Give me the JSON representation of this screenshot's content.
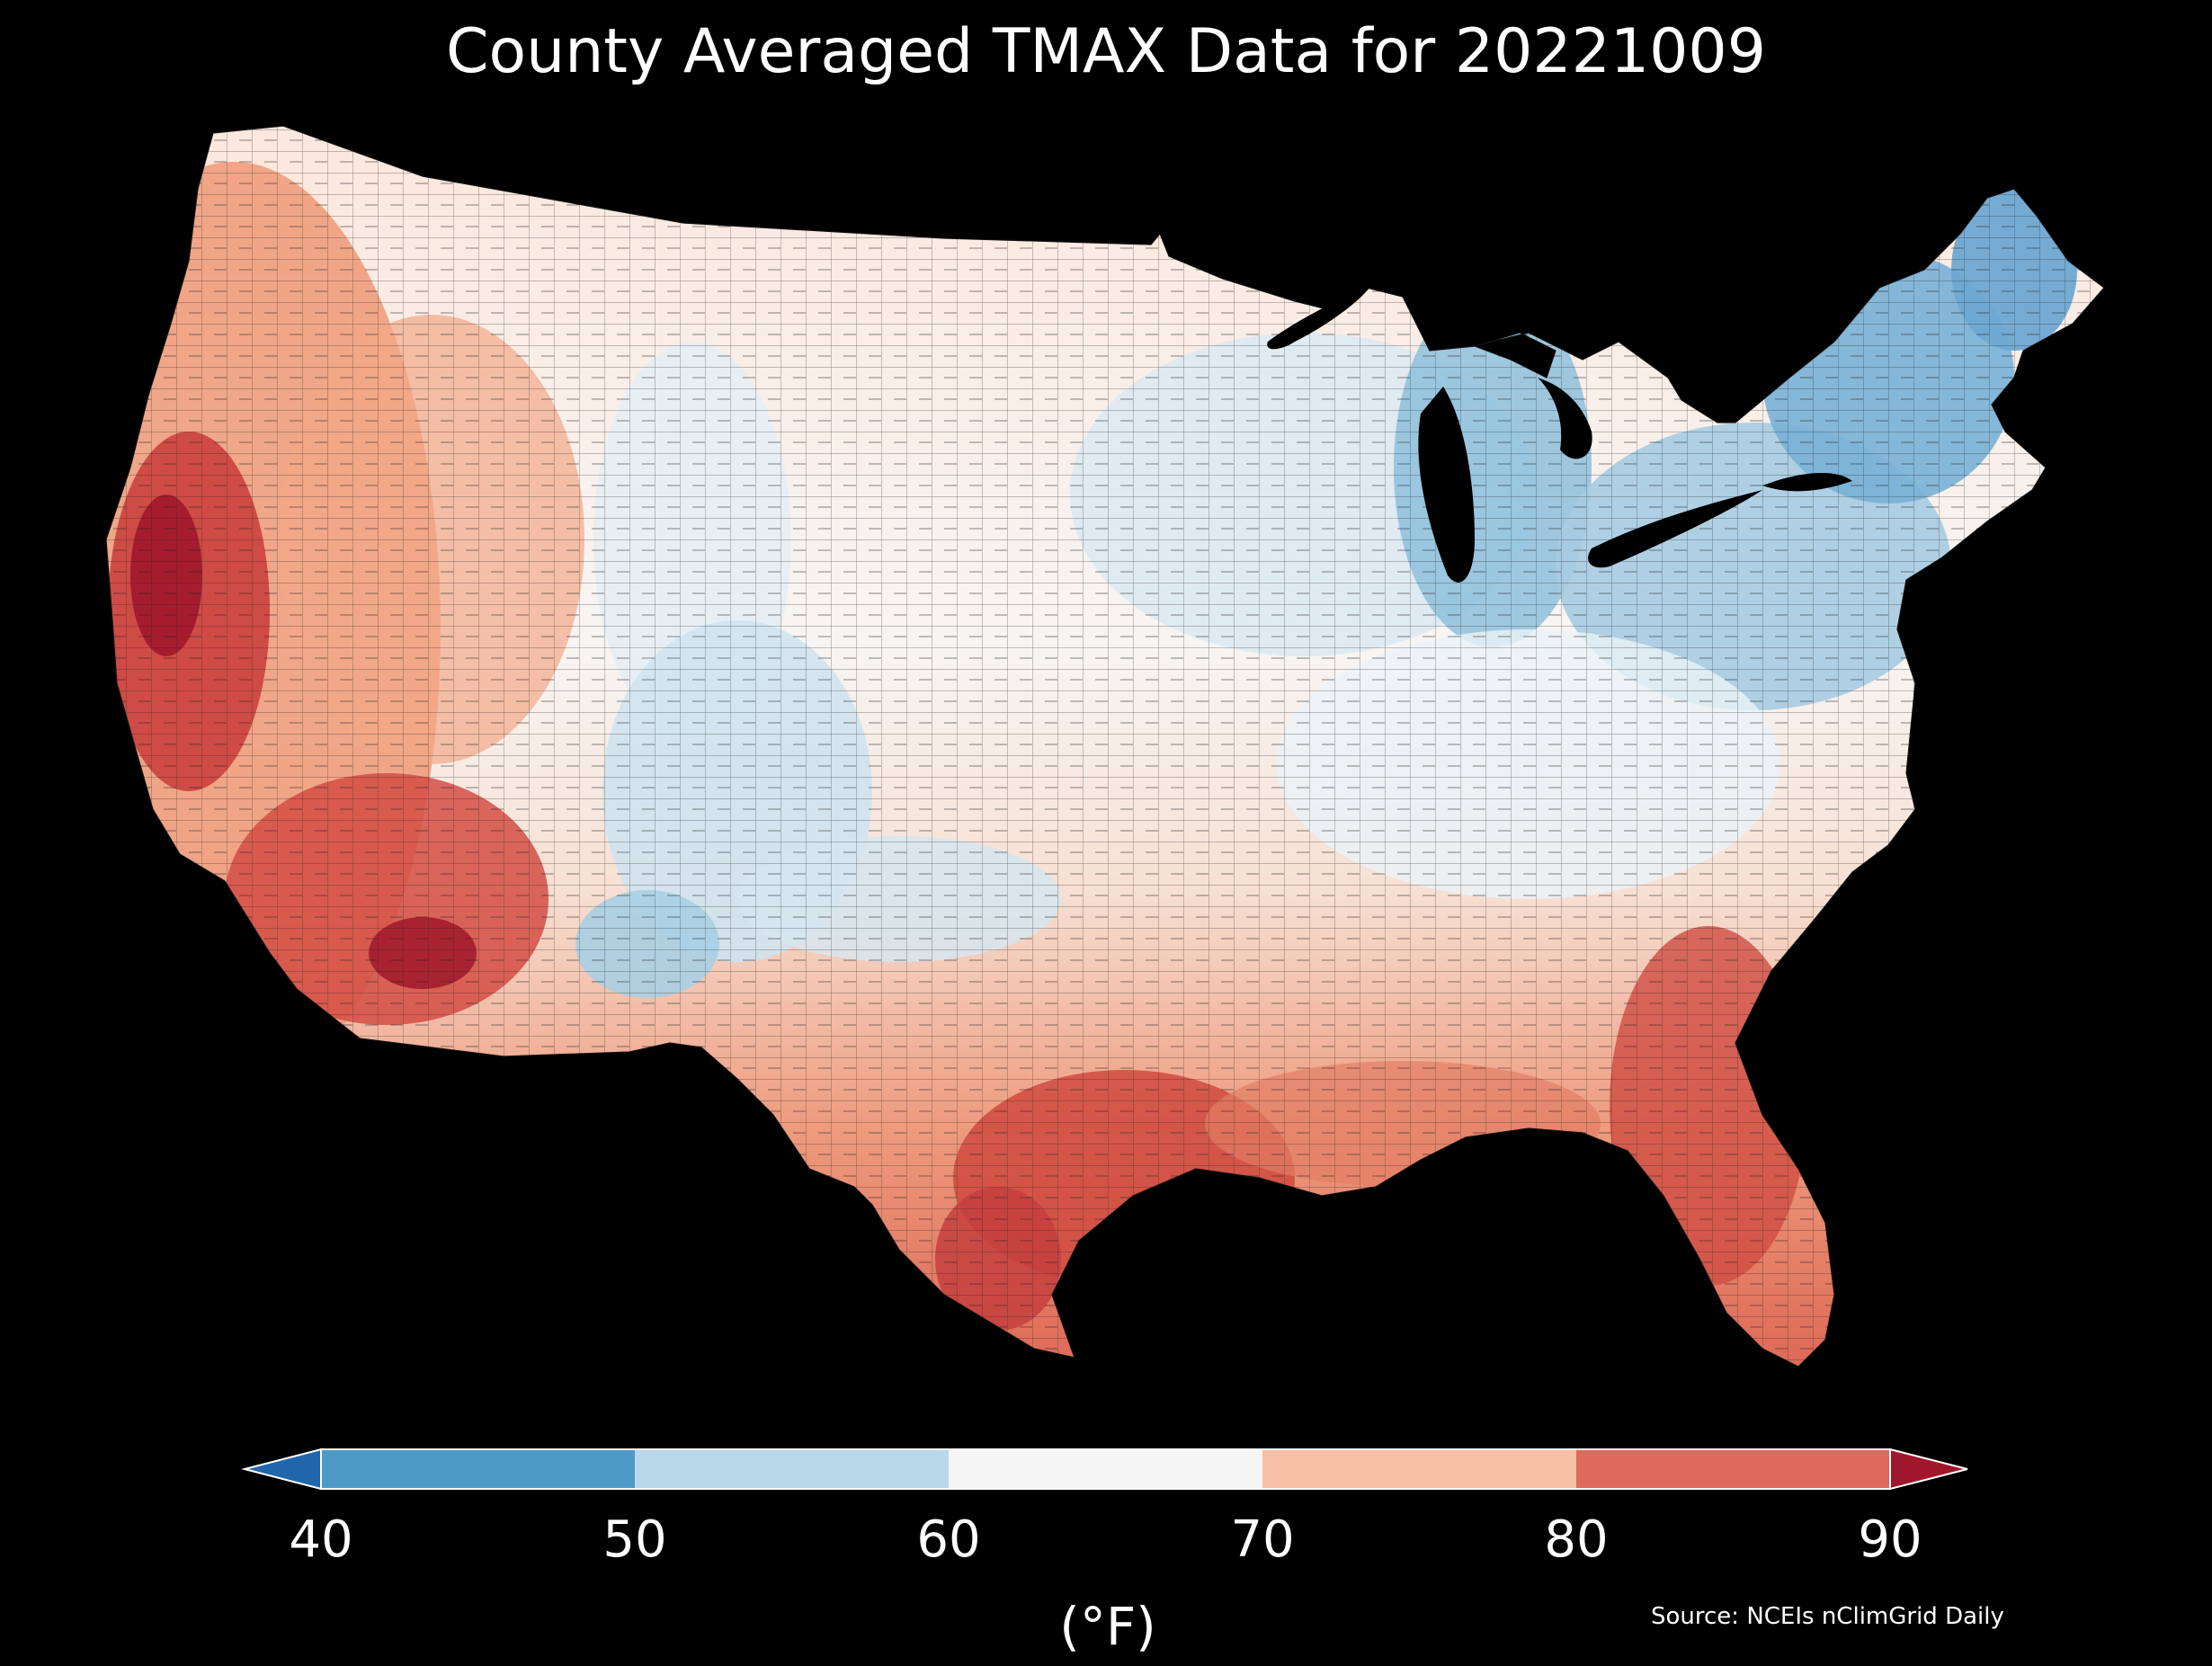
{
  "title": "County Averaged TMAX Data for 20221009",
  "colorbar": {
    "unit": "(°F)",
    "ticks": [
      "40",
      "50",
      "60",
      "70",
      "80",
      "90"
    ],
    "extend": "both",
    "bins": [
      {
        "range": "<40",
        "color": "#2166ac"
      },
      {
        "range": "40-50",
        "color": "#4d9ac7"
      },
      {
        "range": "50-60",
        "color": "#b9d8ea"
      },
      {
        "range": "60-70",
        "color": "#f5f5f5"
      },
      {
        "range": "70-80",
        "color": "#f8c0a5"
      },
      {
        "range": "80-90",
        "color": "#dd6a5a"
      },
      {
        "range": ">90",
        "color": "#a0172c"
      }
    ]
  },
  "source": "Source: NCEIs nClimGrid Daily",
  "map": {
    "background": "#000000",
    "region": "Contiguous United States counties"
  }
}
